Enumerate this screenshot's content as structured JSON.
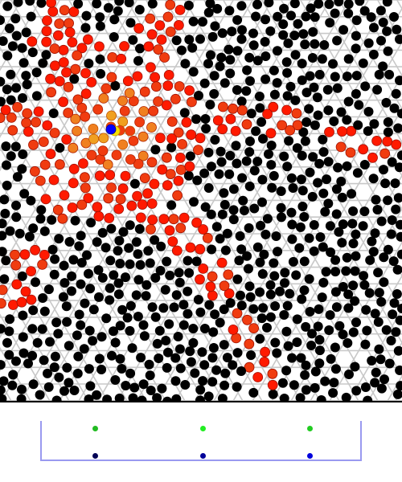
{
  "board": {
    "background": "#ffffff",
    "lattice_color": "#c8c8c8",
    "piece_colors": {
      "black": "#000000",
      "red": "#ff1a00",
      "red_orange": "#f03c10",
      "orange": "#f08020",
      "amber": "#f0a020",
      "yellow": "#f8e000",
      "selected": "#0000ff"
    },
    "selected_piece": "blue-player-piece"
  },
  "palette": {
    "border_color": "#9a9af0",
    "swatches": [
      {
        "name": "color-swatch-green-1",
        "color": "#22bb22"
      },
      {
        "name": "color-swatch-green-2",
        "color": "#22ee22"
      },
      {
        "name": "color-swatch-green-3",
        "color": "#22cc22"
      },
      {
        "name": "color-swatch-navy",
        "color": "#000055"
      },
      {
        "name": "color-swatch-blue",
        "color": "#000099"
      },
      {
        "name": "color-swatch-bright-blue",
        "color": "#0000dd"
      }
    ]
  }
}
